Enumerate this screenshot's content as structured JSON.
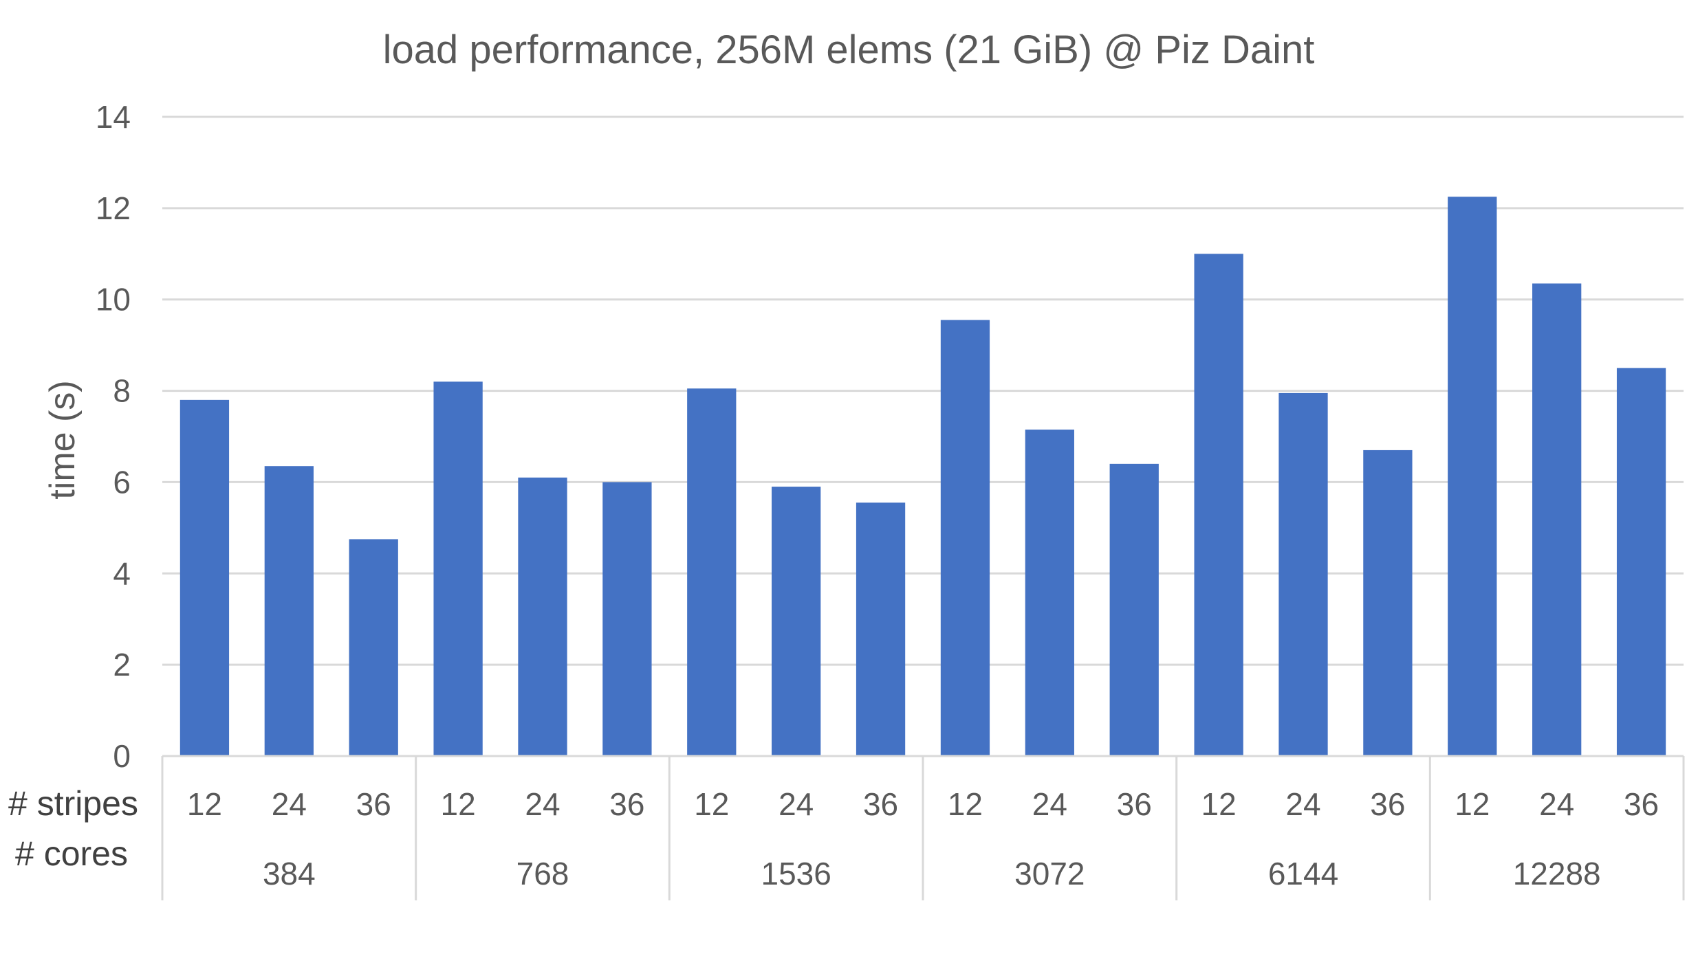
{
  "chart_data": {
    "type": "bar",
    "title": "load performance, 256M elems (21 GiB) @ Piz Daint",
    "ylabel": "time (s)",
    "xlabel": "",
    "ylim": [
      0,
      14
    ],
    "yticks": [
      0,
      2,
      4,
      6,
      8,
      10,
      12,
      14
    ],
    "grid": true,
    "legend": "none",
    "bar_color": "#4472C4",
    "row_labels": {
      "stripes": "# stripes",
      "cores": "# cores"
    },
    "groups": [
      {
        "cores": "384",
        "bars": [
          {
            "stripes": "12",
            "value": 7.8
          },
          {
            "stripes": "24",
            "value": 6.35
          },
          {
            "stripes": "36",
            "value": 4.75
          }
        ]
      },
      {
        "cores": "768",
        "bars": [
          {
            "stripes": "12",
            "value": 8.2
          },
          {
            "stripes": "24",
            "value": 6.1
          },
          {
            "stripes": "36",
            "value": 6.0
          }
        ]
      },
      {
        "cores": "1536",
        "bars": [
          {
            "stripes": "12",
            "value": 8.05
          },
          {
            "stripes": "24",
            "value": 5.9
          },
          {
            "stripes": "36",
            "value": 5.55
          }
        ]
      },
      {
        "cores": "3072",
        "bars": [
          {
            "stripes": "12",
            "value": 9.55
          },
          {
            "stripes": "24",
            "value": 7.15
          },
          {
            "stripes": "36",
            "value": 6.4
          }
        ]
      },
      {
        "cores": "6144",
        "bars": [
          {
            "stripes": "12",
            "value": 11.0
          },
          {
            "stripes": "24",
            "value": 7.95
          },
          {
            "stripes": "36",
            "value": 6.7
          }
        ]
      },
      {
        "cores": "12288",
        "bars": [
          {
            "stripes": "12",
            "value": 12.25
          },
          {
            "stripes": "24",
            "value": 10.35
          },
          {
            "stripes": "36",
            "value": 8.5
          }
        ]
      }
    ]
  }
}
